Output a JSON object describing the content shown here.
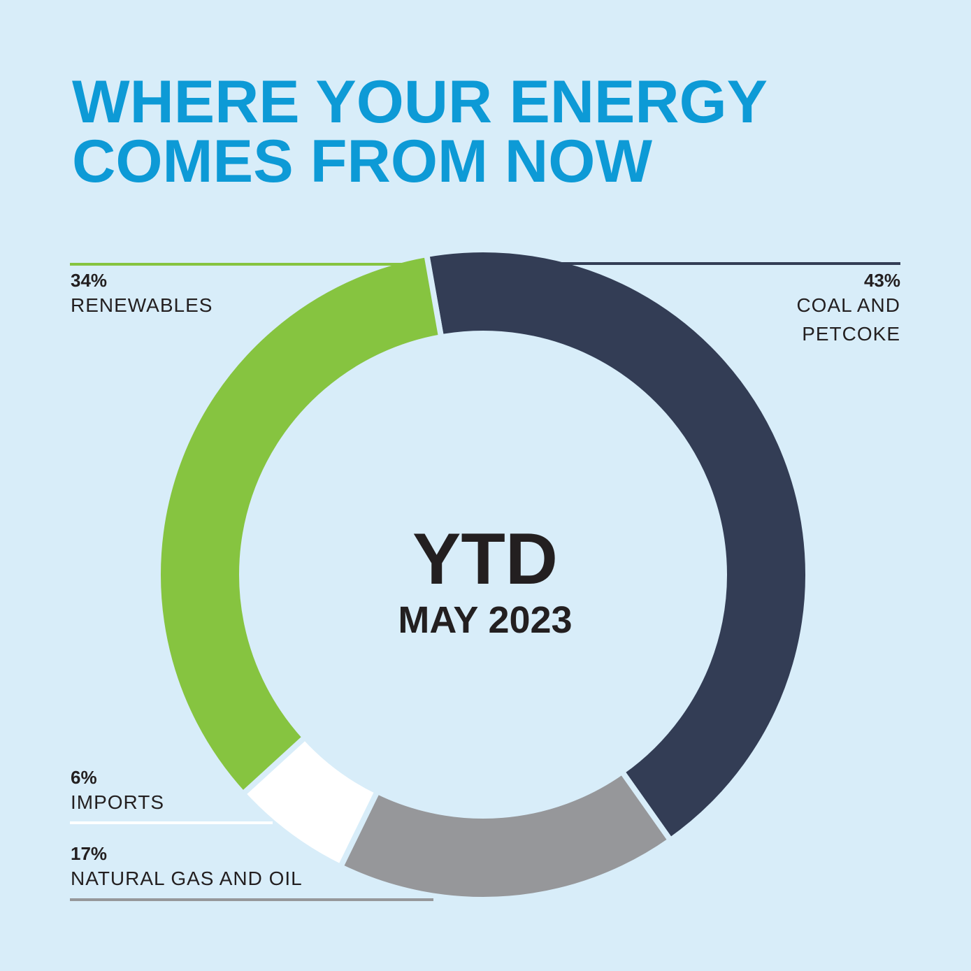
{
  "chart_data": {
    "type": "donut",
    "title": [
      "WHERE YOUR ENERGY",
      "COMES FROM NOW"
    ],
    "center_text": [
      "YTD",
      "MAY 2023"
    ],
    "categories": [
      "COAL AND PETCOKE",
      "NATURAL GAS AND OIL",
      "IMPORTS",
      "RENEWABLES"
    ],
    "values": [
      43,
      17,
      6,
      34
    ],
    "value_labels": [
      "43%",
      "17%",
      "6%",
      "34%"
    ],
    "colors": [
      "#333d55",
      "#96979a",
      "#ffffff",
      "#86c440"
    ]
  }
}
